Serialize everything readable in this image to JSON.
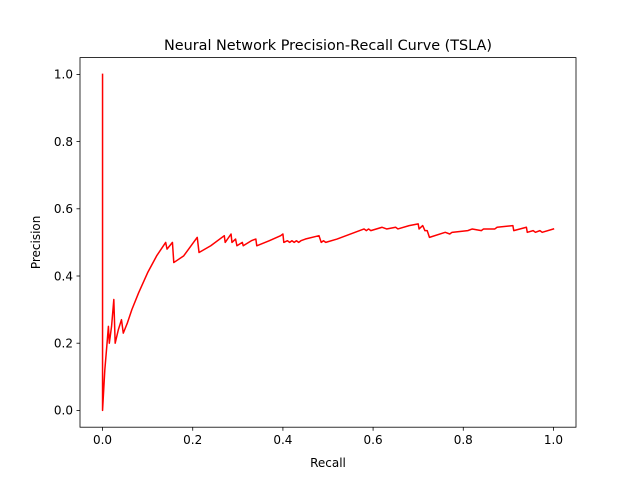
{
  "chart_data": {
    "type": "line",
    "title": "Neural Network Precision-Recall Curve (TSLA)",
    "xlabel": "Recall",
    "ylabel": "Precision",
    "xlim": [
      -0.05,
      1.05
    ],
    "ylim": [
      -0.05,
      1.05
    ],
    "xticks": [
      0.0,
      0.2,
      0.4,
      0.6,
      0.8,
      1.0
    ],
    "xtick_labels": [
      "0.0",
      "0.2",
      "0.4",
      "0.6",
      "0.8",
      "1.0"
    ],
    "yticks": [
      0.0,
      0.2,
      0.4,
      0.6,
      0.8,
      1.0
    ],
    "ytick_labels": [
      "0.0",
      "0.2",
      "0.4",
      "0.6",
      "0.8",
      "1.0"
    ],
    "grid": false,
    "series": [
      {
        "color": "#ff0000",
        "x": [
          0.0,
          0.0,
          0.0,
          0.005,
          0.01,
          0.013,
          0.015,
          0.02,
          0.025,
          0.028,
          0.028,
          0.035,
          0.042,
          0.046,
          0.055,
          0.065,
          0.08,
          0.1,
          0.12,
          0.14,
          0.143,
          0.155,
          0.158,
          0.18,
          0.21,
          0.214,
          0.24,
          0.27,
          0.272,
          0.285,
          0.287,
          0.295,
          0.298,
          0.31,
          0.312,
          0.33,
          0.34,
          0.342,
          0.37,
          0.395,
          0.4,
          0.402,
          0.41,
          0.415,
          0.42,
          0.425,
          0.43,
          0.435,
          0.44,
          0.45,
          0.48,
          0.485,
          0.49,
          0.495,
          0.52,
          0.56,
          0.58,
          0.585,
          0.59,
          0.595,
          0.62,
          0.63,
          0.65,
          0.655,
          0.68,
          0.7,
          0.702,
          0.71,
          0.715,
          0.72,
          0.725,
          0.76,
          0.77,
          0.775,
          0.81,
          0.82,
          0.84,
          0.845,
          0.87,
          0.875,
          0.91,
          0.912,
          0.94,
          0.942,
          0.955,
          0.96,
          0.97,
          0.975,
          1.0
        ],
        "y": [
          1.0,
          0.0,
          0.0,
          0.12,
          0.2,
          0.25,
          0.2,
          0.25,
          0.33,
          0.2,
          0.2,
          0.24,
          0.27,
          0.23,
          0.26,
          0.3,
          0.35,
          0.41,
          0.46,
          0.5,
          0.48,
          0.5,
          0.44,
          0.46,
          0.515,
          0.47,
          0.49,
          0.52,
          0.5,
          0.525,
          0.5,
          0.51,
          0.49,
          0.5,
          0.49,
          0.505,
          0.51,
          0.49,
          0.505,
          0.52,
          0.525,
          0.5,
          0.505,
          0.5,
          0.505,
          0.5,
          0.505,
          0.5,
          0.505,
          0.51,
          0.52,
          0.5,
          0.505,
          0.5,
          0.51,
          0.53,
          0.54,
          0.535,
          0.54,
          0.535,
          0.545,
          0.54,
          0.545,
          0.54,
          0.55,
          0.555,
          0.54,
          0.55,
          0.535,
          0.535,
          0.515,
          0.53,
          0.525,
          0.53,
          0.535,
          0.54,
          0.535,
          0.54,
          0.54,
          0.545,
          0.55,
          0.535,
          0.545,
          0.53,
          0.535,
          0.53,
          0.535,
          0.53,
          0.54
        ]
      }
    ]
  }
}
